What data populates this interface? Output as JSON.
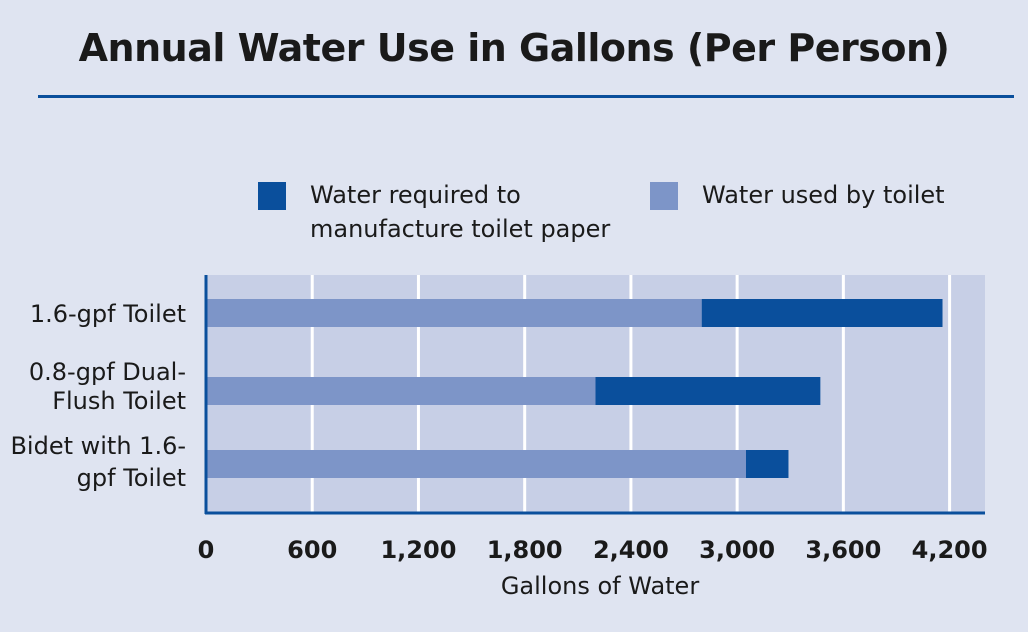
{
  "chart_data": {
    "type": "bar",
    "orientation": "horizontal",
    "stacked": true,
    "title": "Annual Water Use in Gallons (Per Person)",
    "xlabel": "Gallons of Water",
    "ylabel": "",
    "xlim": [
      0,
      4400
    ],
    "xticks": [
      0,
      600,
      1200,
      1800,
      2400,
      3000,
      3600,
      4200
    ],
    "xtick_labels": [
      "0",
      "600",
      "1,200",
      "1,800",
      "2,400",
      "3,000",
      "3,600",
      "4,200"
    ],
    "categories": [
      [
        "1.6-gpf Toilet"
      ],
      [
        "0.8-gpf Dual-",
        "Flush Toilet"
      ],
      [
        "Bidet with 1.6-",
        "gpf Toilet"
      ]
    ],
    "series": [
      {
        "name": "Water used by toilet",
        "color": "#7d95c8",
        "values": [
          2800,
          2200,
          3050
        ]
      },
      {
        "name": "Water required to manufacture toilet paper",
        "color": "#0a4f9c",
        "values": [
          1360,
          1270,
          240
        ]
      }
    ],
    "legend": [
      {
        "lines": [
          "Water required to",
          "manufacture toilet paper"
        ],
        "color": "#0a4f9c"
      },
      {
        "lines": [
          "Water used by toilet"
        ],
        "color": "#7d95c8"
      }
    ],
    "grid": true,
    "legend_position": "top"
  }
}
